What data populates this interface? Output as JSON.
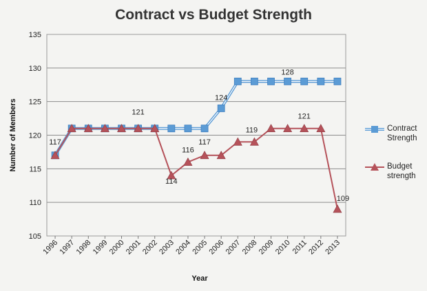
{
  "chart_data": {
    "type": "line",
    "title": "Contract vs Budget Strength",
    "xlabel": "Year",
    "ylabel": "Number of Members",
    "ylim": [
      105,
      135
    ],
    "yticks": [
      105,
      110,
      115,
      120,
      125,
      130,
      135
    ],
    "grid": true,
    "legend": "right",
    "categories": [
      "1996",
      "1997",
      "1998",
      "1999",
      "2000",
      "2001",
      "2002",
      "2003",
      "2004",
      "2005",
      "2006",
      "2007",
      "2008",
      "2009",
      "2010",
      "2011",
      "2012",
      "2013"
    ],
    "series": [
      {
        "name": "Contract Strength",
        "color": "#5b9bd5",
        "marker": "square",
        "values": [
          117,
          121,
          121,
          121,
          121,
          121,
          121,
          121,
          121,
          121,
          124,
          128,
          128,
          128,
          128,
          128,
          128,
          128
        ]
      },
      {
        "name": "Budget strength",
        "color": "#b5525a",
        "marker": "triangle",
        "values": [
          117,
          121,
          121,
          121,
          121,
          121,
          121,
          114,
          116,
          117,
          117,
          119,
          119,
          121,
          121,
          121,
          121,
          109
        ]
      }
    ],
    "annotations": [
      {
        "category": "1996",
        "text": "117"
      },
      {
        "category": "2001",
        "text": "121"
      },
      {
        "category": "2003",
        "text": "114"
      },
      {
        "category": "2004",
        "text": "116"
      },
      {
        "category": "2005",
        "text": "117"
      },
      {
        "category": "2006",
        "text": "124"
      },
      {
        "category": "2008",
        "text": "119"
      },
      {
        "category": "2010",
        "text": "128"
      },
      {
        "category": "2011",
        "text": "121"
      },
      {
        "category": "2013",
        "text": "109"
      }
    ]
  }
}
